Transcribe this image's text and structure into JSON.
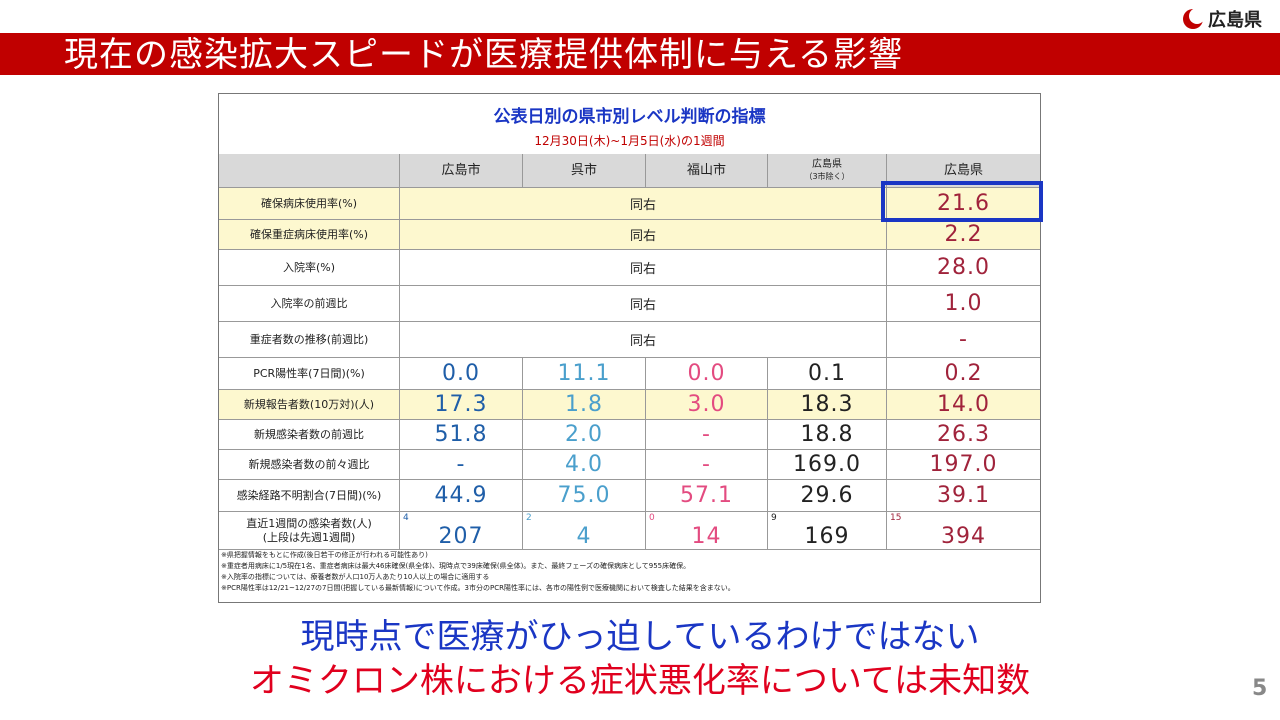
{
  "logo": {
    "text": "広島県"
  },
  "title": "現在の感染拡大スピードが医療提供体制に与える影響",
  "table": {
    "title": "公表日別の県市別レベル判断の指標",
    "period": "12月30日(木)~1月5日(水)の1週間",
    "headers": [
      {
        "main": "広島市",
        "sub": ""
      },
      {
        "main": "呉市",
        "sub": ""
      },
      {
        "main": "福山市",
        "sub": ""
      },
      {
        "main": "広島県",
        "sub": "（3市除く）"
      },
      {
        "main": "広島県",
        "sub": ""
      }
    ],
    "same_text": "同右",
    "rows": [
      {
        "label": "確保病床使用率(%)",
        "pref": "21.6"
      },
      {
        "label": "確保重症病床使用率(%)",
        "pref": "2.2"
      },
      {
        "label": "入院率(%)",
        "pref": "28.0"
      },
      {
        "label": "入院率の前週比",
        "pref": "1.0"
      },
      {
        "label": "重症者数の推移(前週比)",
        "pref": "-"
      },
      {
        "label": "PCR陽性率(7日間)(%)",
        "v": [
          "0.0",
          "11.1",
          "0.0",
          "0.1",
          "0.2"
        ]
      },
      {
        "label": "新規報告者数(10万対)(人)",
        "v": [
          "17.3",
          "1.8",
          "3.0",
          "18.3",
          "14.0"
        ]
      },
      {
        "label": "新規感染者数の前週比",
        "v": [
          "51.8",
          "2.0",
          "-",
          "18.8",
          "26.3"
        ]
      },
      {
        "label": "新規感染者数の前々週比",
        "v": [
          "-",
          "4.0",
          "-",
          "169.0",
          "197.0"
        ]
      },
      {
        "label": "感染経路不明割合(7日間)(%)",
        "v": [
          "44.9",
          "75.0",
          "57.1",
          "29.6",
          "39.1"
        ]
      }
    ],
    "last_row": {
      "label1": "直近1週間の感染者数(人)",
      "label2": "(上段は先週1週間)",
      "prev": [
        "4",
        "2",
        "0",
        "9",
        "15"
      ],
      "v": [
        "207",
        "4",
        "14",
        "169",
        "394"
      ]
    },
    "notes": [
      "※県把握情報をもとに作成(後日若干の修正が行われる可能性あり)",
      "※重症者用病床に1/5現在1名、重症者病床は最大46床確保(県全体)、現時点で39床確保(県全体)。また、最終フェーズの確保病床として955床確保。",
      "※入院率の指標については、療養者数が人口10万人あたり10人以上の場合に適用する",
      "※PCR陽性率は12/21~12/27の7日間(把握している最新情報)について作成。3市分のPCR陽性率には、各市の陽性例で医療機関において検査した結果を含まない。"
    ]
  },
  "messages": {
    "line1": "現時点で医療がひっ迫しているわけではない",
    "line2": "オミクロン株における症状悪化率については未知数"
  },
  "page_number": "5"
}
